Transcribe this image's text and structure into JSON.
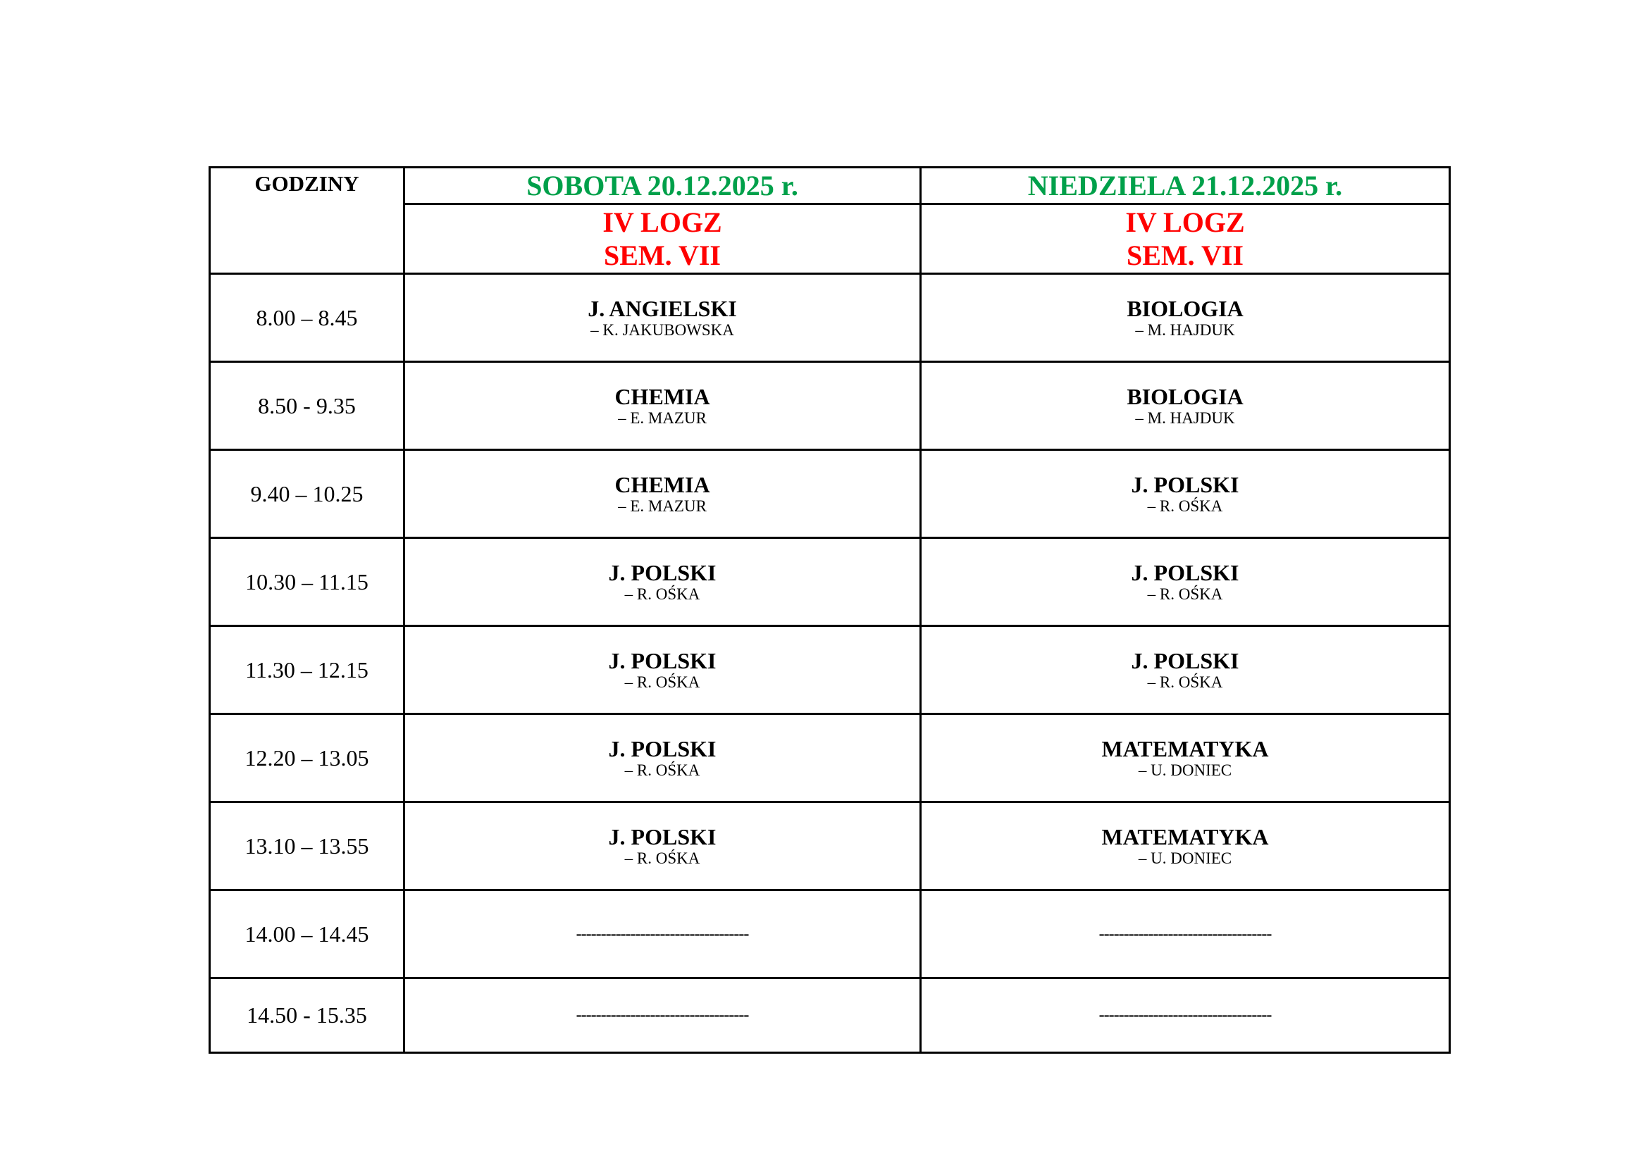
{
  "header": {
    "hours_label": "GODZINY",
    "days": [
      {
        "date": "SOBOTA 20.12.2025 r.",
        "group": "IV LOGZ",
        "semester": "SEM. VII"
      },
      {
        "date": "NIEDZIELA 21.12.2025 r.",
        "group": "IV LOGZ",
        "semester": "SEM. VII"
      }
    ]
  },
  "colors": {
    "date": "#00a04a",
    "group": "#ff0000"
  },
  "rows": [
    {
      "time": "8.00 – 8.45",
      "sat": {
        "subject": "J. ANGIELSKI",
        "teacher": "– K. JAKUBOWSKA"
      },
      "sun": {
        "subject": "BIOLOGIA",
        "teacher": "– M. HAJDUK"
      }
    },
    {
      "time": "8.50 - 9.35",
      "sat": {
        "subject": "CHEMIA",
        "teacher": "– E. MAZUR"
      },
      "sun": {
        "subject": "BIOLOGIA",
        "teacher": "– M. HAJDUK"
      }
    },
    {
      "time": "9.40 – 10.25",
      "sat": {
        "subject": "CHEMIA",
        "teacher": "– E. MAZUR"
      },
      "sun": {
        "subject": "J. POLSKI",
        "teacher": "– R. OŚKA"
      }
    },
    {
      "time": "10.30 – 11.15",
      "sat": {
        "subject": "J. POLSKI",
        "teacher": "– R. OŚKA"
      },
      "sun": {
        "subject": "J. POLSKI",
        "teacher": "– R. OŚKA"
      }
    },
    {
      "time": "11.30 – 12.15",
      "sat": {
        "subject": "J. POLSKI",
        "teacher": "– R. OŚKA"
      },
      "sun": {
        "subject": "J. POLSKI",
        "teacher": "– R. OŚKA"
      }
    },
    {
      "time": "12.20 – 13.05",
      "sat": {
        "subject": "J. POLSKI",
        "teacher": "– R. OŚKA"
      },
      "sun": {
        "subject": "MATEMATYKA",
        "teacher": "– U. DONIEC"
      }
    },
    {
      "time": "13.10 – 13.55",
      "sat": {
        "subject": "J. POLSKI",
        "teacher": "– R. OŚKA"
      },
      "sun": {
        "subject": "MATEMATYKA",
        "teacher": "– U. DONIEC"
      }
    },
    {
      "time": "14.00 – 14.45",
      "sat": {
        "subject": "-----------------------------------",
        "teacher": ""
      },
      "sun": {
        "subject": "-----------------------------------",
        "teacher": ""
      }
    },
    {
      "time": "14.50 - 15.35",
      "sat": {
        "subject": "-----------------------------------",
        "teacher": ""
      },
      "sun": {
        "subject": "-----------------------------------",
        "teacher": ""
      }
    }
  ]
}
